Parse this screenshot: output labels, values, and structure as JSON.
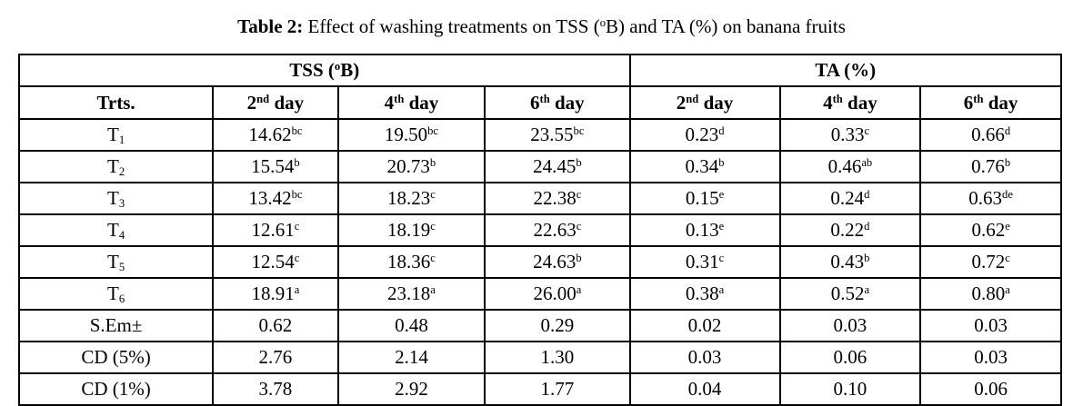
{
  "title": {
    "label": "Table 2:",
    "text": " Effect of washing treatments on TSS (^{o}B) and TA (%) on banana fruits"
  },
  "table": {
    "group_headers": [
      {
        "label": "TSS (^{o}B)",
        "colspan": 4
      },
      {
        "label": "TA (%)",
        "colspan": 3
      }
    ],
    "column_headers": [
      "Trts.",
      "2^{nd} day",
      "4^{th} day",
      "6^{th} day",
      "2^{nd} day",
      "4^{th} day",
      "6^{th} day"
    ],
    "rows": [
      {
        "label": "T_{1}",
        "values": [
          "14.62^{bc}",
          "19.50^{bc}",
          "23.55^{bc}",
          "0.23^{d}",
          "0.33^{c}",
          "0.66^{d}"
        ]
      },
      {
        "label": "T_{2}",
        "values": [
          "15.54^{b}",
          "20.73^{b}",
          "24.45^{b}",
          "0.34^{b}",
          "0.46^{ab}",
          "0.76^{b}"
        ]
      },
      {
        "label": "T_{3}",
        "values": [
          "13.42^{bc}",
          "18.23^{c}",
          "22.38^{c}",
          "0.15^{e}",
          "0.24^{d}",
          "0.63^{de}"
        ]
      },
      {
        "label": "T_{4}",
        "values": [
          "12.61^{c}",
          "18.19^{c}",
          "22.63^{c}",
          "0.13^{e}",
          "0.22^{d}",
          "0.62^{e}"
        ]
      },
      {
        "label": "T_{5}",
        "values": [
          "12.54^{c}",
          "18.36^{c}",
          "24.63^{b}",
          "0.31^{c}",
          "0.43^{b}",
          "0.72^{c}"
        ]
      },
      {
        "label": "T_{6}",
        "values": [
          "18.91^{a}",
          "23.18^{a}",
          "26.00^{a}",
          "0.38^{a}",
          "0.52^{a}",
          "0.80^{a}"
        ]
      },
      {
        "label": "S.Em±",
        "values": [
          "0.62",
          "0.48",
          "0.29",
          "0.02",
          "0.03",
          "0.03"
        ]
      },
      {
        "label": "CD (5%)",
        "values": [
          "2.76",
          "2.14",
          "1.30",
          "0.03",
          "0.06",
          "0.03"
        ]
      },
      {
        "label": "CD (1%)",
        "values": [
          "3.78",
          "2.92",
          "1.77",
          "0.04",
          "0.10",
          "0.06"
        ]
      }
    ]
  }
}
